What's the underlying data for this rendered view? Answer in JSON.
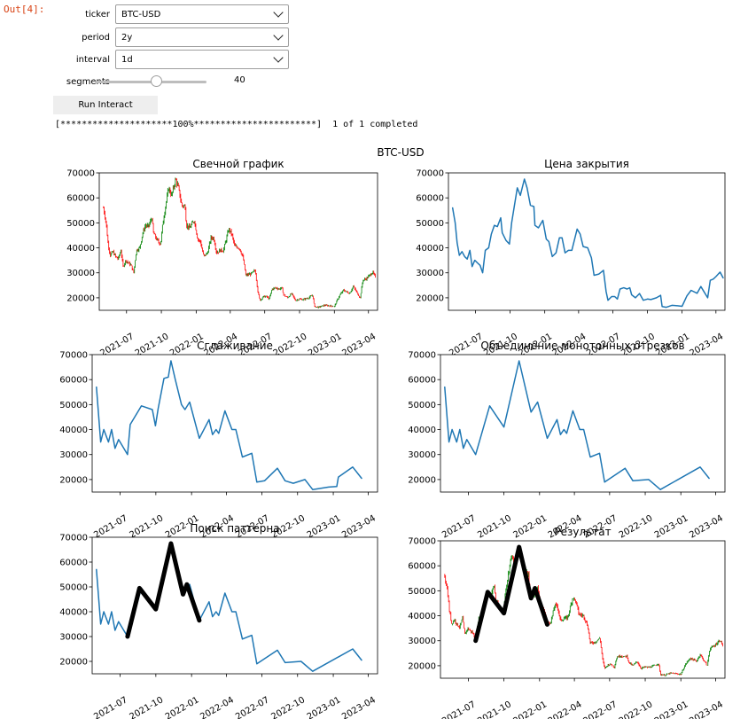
{
  "output_prompt": "Out[4]:",
  "controls": {
    "ticker": {
      "label": "ticker",
      "value": "BTC-USD"
    },
    "period": {
      "label": "period",
      "value": "2y"
    },
    "interval": {
      "label": "interval",
      "value": "1d"
    },
    "segments": {
      "label": "segments",
      "value": "40",
      "fraction": 0.5
    },
    "run_label": "Run Interact"
  },
  "progress_text": "[*********************100%***********************]  1 of 1 completed",
  "figure": {
    "suptitle": "BTC-USD",
    "x_ticks": [
      "2021-07",
      "2021-10",
      "2022-01",
      "2022-04",
      "2022-07",
      "2022-10",
      "2023-01",
      "2023-04"
    ],
    "y_ticks": [
      20000,
      30000,
      40000,
      50000,
      60000,
      70000
    ],
    "line_color": "#1f77b4",
    "highlight_color": "#000000",
    "up_color": "#008000",
    "down_color": "#ff0000"
  },
  "chart_data": [
    {
      "type": "line",
      "title": "Свечной график",
      "style": "candlestick",
      "xlim": [
        "2021-04-20",
        "2023-04-25"
      ],
      "ylim": [
        15000,
        70000
      ]
    },
    {
      "type": "line",
      "title": "Цена закрытия",
      "xlim": [
        "2021-04-20",
        "2023-04-25"
      ],
      "ylim": [
        15000,
        70000
      ]
    },
    {
      "type": "line",
      "title": "Сглаживание",
      "xlim": [
        "2021-04-20",
        "2023-04-25"
      ],
      "ylim": [
        15000,
        70000
      ]
    },
    {
      "type": "line",
      "title": "Объединение монотонных отрезков",
      "xlim": [
        "2021-04-20",
        "2023-04-25"
      ],
      "ylim": [
        15000,
        70000
      ]
    },
    {
      "type": "line",
      "title": "Поиск паттерна",
      "xlim": [
        "2021-04-20",
        "2023-04-25"
      ],
      "ylim": [
        15000,
        70000
      ]
    },
    {
      "type": "line",
      "title": "Результат",
      "style": "candlestick",
      "xlim": [
        "2021-04-20",
        "2023-04-25"
      ],
      "ylim": [
        15000,
        70000
      ]
    }
  ],
  "series": {
    "close_points": [
      [
        "2021-05-01",
        56000
      ],
      [
        "2021-05-08",
        50000
      ],
      [
        "2021-05-13",
        42000
      ],
      [
        "2021-05-19",
        37000
      ],
      [
        "2021-05-26",
        38500
      ],
      [
        "2021-06-02",
        36500
      ],
      [
        "2021-06-09",
        35500
      ],
      [
        "2021-06-16",
        39000
      ],
      [
        "2021-06-22",
        32500
      ],
      [
        "2021-06-29",
        35000
      ],
      [
        "2021-07-06",
        34000
      ],
      [
        "2021-07-13",
        33000
      ],
      [
        "2021-07-20",
        30000
      ],
      [
        "2021-07-27",
        39000
      ],
      [
        "2021-08-05",
        40000
      ],
      [
        "2021-08-12",
        45500
      ],
      [
        "2021-08-20",
        49000
      ],
      [
        "2021-08-28",
        48500
      ],
      [
        "2021-09-06",
        52000
      ],
      [
        "2021-09-10",
        46000
      ],
      [
        "2021-09-20",
        43000
      ],
      [
        "2021-09-29",
        41500
      ],
      [
        "2021-10-05",
        50000
      ],
      [
        "2021-10-13",
        57500
      ],
      [
        "2021-10-20",
        64000
      ],
      [
        "2021-10-28",
        61000
      ],
      [
        "2021-11-08",
        67500
      ],
      [
        "2021-11-15",
        64000
      ],
      [
        "2021-11-24",
        57000
      ],
      [
        "2021-12-03",
        56500
      ],
      [
        "2021-12-06",
        49000
      ],
      [
        "2021-12-15",
        48000
      ],
      [
        "2021-12-27",
        51000
      ],
      [
        "2022-01-05",
        43500
      ],
      [
        "2022-01-12",
        42500
      ],
      [
        "2022-01-21",
        36500
      ],
      [
        "2022-01-31",
        38000
      ],
      [
        "2022-02-09",
        44000
      ],
      [
        "2022-02-16",
        44000
      ],
      [
        "2022-02-24",
        38000
      ],
      [
        "2022-03-05",
        39000
      ],
      [
        "2022-03-14",
        39000
      ],
      [
        "2022-03-28",
        47500
      ],
      [
        "2022-04-05",
        45500
      ],
      [
        "2022-04-13",
        40500
      ],
      [
        "2022-04-25",
        40000
      ],
      [
        "2022-05-05",
        36000
      ],
      [
        "2022-05-12",
        29000
      ],
      [
        "2022-05-25",
        29500
      ],
      [
        "2022-06-06",
        31000
      ],
      [
        "2022-06-13",
        22500
      ],
      [
        "2022-06-18",
        19000
      ],
      [
        "2022-06-28",
        20500
      ],
      [
        "2022-07-06",
        20500
      ],
      [
        "2022-07-13",
        19500
      ],
      [
        "2022-07-20",
        23500
      ],
      [
        "2022-07-30",
        24000
      ],
      [
        "2022-08-08",
        23500
      ],
      [
        "2022-08-15",
        24000
      ],
      [
        "2022-08-20",
        21200
      ],
      [
        "2022-08-30",
        20000
      ],
      [
        "2022-09-10",
        21700
      ],
      [
        "2022-09-20",
        19000
      ],
      [
        "2022-10-01",
        19500
      ],
      [
        "2022-10-10",
        19300
      ],
      [
        "2022-10-25",
        20000
      ],
      [
        "2022-11-05",
        21000
      ],
      [
        "2022-11-09",
        16500
      ],
      [
        "2022-11-20",
        16200
      ],
      [
        "2022-12-05",
        17000
      ],
      [
        "2022-12-20",
        16800
      ],
      [
        "2023-01-01",
        16600
      ],
      [
        "2023-01-14",
        20800
      ],
      [
        "2023-01-25",
        23000
      ],
      [
        "2023-02-10",
        21800
      ],
      [
        "2023-02-20",
        24500
      ],
      [
        "2023-03-10",
        20000
      ],
      [
        "2023-03-17",
        27000
      ],
      [
        "2023-03-25",
        27500
      ],
      [
        "2023-04-01",
        28500
      ],
      [
        "2023-04-12",
        30300
      ],
      [
        "2023-04-20",
        28000
      ]
    ],
    "smooth_points": [
      [
        "2021-05-01",
        57000
      ],
      [
        "2021-05-12",
        35000
      ],
      [
        "2021-05-20",
        40000
      ],
      [
        "2021-06-01",
        35000
      ],
      [
        "2021-06-09",
        40000
      ],
      [
        "2021-06-18",
        32500
      ],
      [
        "2021-06-27",
        36000
      ],
      [
        "2021-07-20",
        30000
      ],
      [
        "2021-07-27",
        42000
      ],
      [
        "2021-08-25",
        49500
      ],
      [
        "2021-09-22",
        48000
      ],
      [
        "2021-09-30",
        41500
      ],
      [
        "2021-10-07",
        48500
      ],
      [
        "2021-10-22",
        60500
      ],
      [
        "2021-11-02",
        61000
      ],
      [
        "2021-11-09",
        67500
      ],
      [
        "2021-11-20",
        60000
      ],
      [
        "2021-12-06",
        50000
      ],
      [
        "2021-12-15",
        48000
      ],
      [
        "2021-12-27",
        51000
      ],
      [
        "2022-01-21",
        36500
      ],
      [
        "2022-02-15",
        44000
      ],
      [
        "2022-02-24",
        38000
      ],
      [
        "2022-03-05",
        40000
      ],
      [
        "2022-03-12",
        38500
      ],
      [
        "2022-03-28",
        47500
      ],
      [
        "2022-04-15",
        40000
      ],
      [
        "2022-04-25",
        40000
      ],
      [
        "2022-05-12",
        29000
      ],
      [
        "2022-06-05",
        30500
      ],
      [
        "2022-06-18",
        19000
      ],
      [
        "2022-07-08",
        19500
      ],
      [
        "2022-08-10",
        24500
      ],
      [
        "2022-08-30",
        19500
      ],
      [
        "2022-09-20",
        18500
      ],
      [
        "2022-10-20",
        20000
      ],
      [
        "2022-11-09",
        16000
      ],
      [
        "2022-12-20",
        17000
      ],
      [
        "2023-01-10",
        17200
      ],
      [
        "2023-01-14",
        21000
      ],
      [
        "2023-02-20",
        25000
      ],
      [
        "2023-03-15",
        20500
      ]
    ],
    "merged_points": [
      [
        "2021-05-01",
        57000
      ],
      [
        "2021-05-12",
        35000
      ],
      [
        "2021-05-20",
        40000
      ],
      [
        "2021-06-01",
        35000
      ],
      [
        "2021-06-09",
        40000
      ],
      [
        "2021-06-18",
        32500
      ],
      [
        "2021-06-27",
        36000
      ],
      [
        "2021-07-20",
        30000
      ],
      [
        "2021-08-25",
        49500
      ],
      [
        "2021-10-01",
        41000
      ],
      [
        "2021-11-09",
        67500
      ],
      [
        "2021-12-10",
        47000
      ],
      [
        "2021-12-27",
        51000
      ],
      [
        "2022-01-21",
        36500
      ],
      [
        "2022-02-15",
        44000
      ],
      [
        "2022-02-24",
        38000
      ],
      [
        "2022-03-05",
        40000
      ],
      [
        "2022-03-12",
        38500
      ],
      [
        "2022-03-28",
        47500
      ],
      [
        "2022-04-15",
        40000
      ],
      [
        "2022-04-25",
        40000
      ],
      [
        "2022-05-12",
        29000
      ],
      [
        "2022-06-05",
        30500
      ],
      [
        "2022-06-18",
        19000
      ],
      [
        "2022-08-10",
        24500
      ],
      [
        "2022-08-30",
        19500
      ],
      [
        "2022-10-10",
        20000
      ],
      [
        "2022-11-09",
        16000
      ],
      [
        "2023-02-20",
        25000
      ],
      [
        "2023-03-15",
        20500
      ]
    ],
    "pattern_points": [
      [
        "2021-07-20",
        30000
      ],
      [
        "2021-08-20",
        49500
      ],
      [
        "2021-10-01",
        41000
      ],
      [
        "2021-11-09",
        67500
      ],
      [
        "2021-12-10",
        47000
      ],
      [
        "2021-12-20",
        51000
      ],
      [
        "2022-01-21",
        36500
      ]
    ]
  }
}
